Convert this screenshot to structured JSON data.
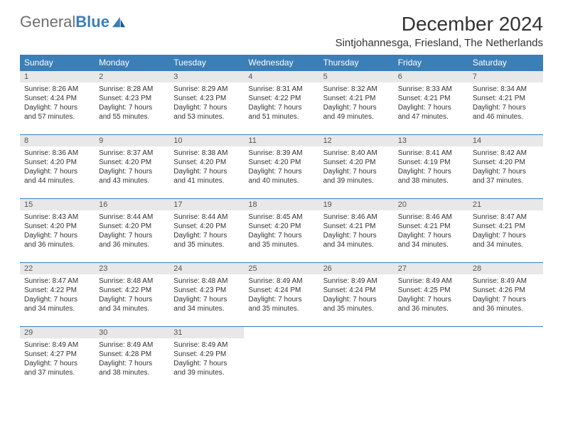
{
  "brand": {
    "part1": "General",
    "part2": "Blue",
    "sail_color": "#3b7fb8"
  },
  "title": "December 2024",
  "location": "Sintjohannesga, Friesland, The Netherlands",
  "colors": {
    "header_bg": "#3b7fb8",
    "header_fg": "#ffffff",
    "daynum_bg": "#e8e8e8",
    "rule": "#3b7fb8"
  },
  "weekdays": [
    "Sunday",
    "Monday",
    "Tuesday",
    "Wednesday",
    "Thursday",
    "Friday",
    "Saturday"
  ],
  "start_weekday": 0,
  "days": [
    {
      "n": 1,
      "sunrise": "8:26 AM",
      "sunset": "4:24 PM",
      "daylight": "7 hours and 57 minutes."
    },
    {
      "n": 2,
      "sunrise": "8:28 AM",
      "sunset": "4:23 PM",
      "daylight": "7 hours and 55 minutes."
    },
    {
      "n": 3,
      "sunrise": "8:29 AM",
      "sunset": "4:23 PM",
      "daylight": "7 hours and 53 minutes."
    },
    {
      "n": 4,
      "sunrise": "8:31 AM",
      "sunset": "4:22 PM",
      "daylight": "7 hours and 51 minutes."
    },
    {
      "n": 5,
      "sunrise": "8:32 AM",
      "sunset": "4:21 PM",
      "daylight": "7 hours and 49 minutes."
    },
    {
      "n": 6,
      "sunrise": "8:33 AM",
      "sunset": "4:21 PM",
      "daylight": "7 hours and 47 minutes."
    },
    {
      "n": 7,
      "sunrise": "8:34 AM",
      "sunset": "4:21 PM",
      "daylight": "7 hours and 46 minutes."
    },
    {
      "n": 8,
      "sunrise": "8:36 AM",
      "sunset": "4:20 PM",
      "daylight": "7 hours and 44 minutes."
    },
    {
      "n": 9,
      "sunrise": "8:37 AM",
      "sunset": "4:20 PM",
      "daylight": "7 hours and 43 minutes."
    },
    {
      "n": 10,
      "sunrise": "8:38 AM",
      "sunset": "4:20 PM",
      "daylight": "7 hours and 41 minutes."
    },
    {
      "n": 11,
      "sunrise": "8:39 AM",
      "sunset": "4:20 PM",
      "daylight": "7 hours and 40 minutes."
    },
    {
      "n": 12,
      "sunrise": "8:40 AM",
      "sunset": "4:20 PM",
      "daylight": "7 hours and 39 minutes."
    },
    {
      "n": 13,
      "sunrise": "8:41 AM",
      "sunset": "4:19 PM",
      "daylight": "7 hours and 38 minutes."
    },
    {
      "n": 14,
      "sunrise": "8:42 AM",
      "sunset": "4:20 PM",
      "daylight": "7 hours and 37 minutes."
    },
    {
      "n": 15,
      "sunrise": "8:43 AM",
      "sunset": "4:20 PM",
      "daylight": "7 hours and 36 minutes."
    },
    {
      "n": 16,
      "sunrise": "8:44 AM",
      "sunset": "4:20 PM",
      "daylight": "7 hours and 36 minutes."
    },
    {
      "n": 17,
      "sunrise": "8:44 AM",
      "sunset": "4:20 PM",
      "daylight": "7 hours and 35 minutes."
    },
    {
      "n": 18,
      "sunrise": "8:45 AM",
      "sunset": "4:20 PM",
      "daylight": "7 hours and 35 minutes."
    },
    {
      "n": 19,
      "sunrise": "8:46 AM",
      "sunset": "4:21 PM",
      "daylight": "7 hours and 34 minutes."
    },
    {
      "n": 20,
      "sunrise": "8:46 AM",
      "sunset": "4:21 PM",
      "daylight": "7 hours and 34 minutes."
    },
    {
      "n": 21,
      "sunrise": "8:47 AM",
      "sunset": "4:21 PM",
      "daylight": "7 hours and 34 minutes."
    },
    {
      "n": 22,
      "sunrise": "8:47 AM",
      "sunset": "4:22 PM",
      "daylight": "7 hours and 34 minutes."
    },
    {
      "n": 23,
      "sunrise": "8:48 AM",
      "sunset": "4:22 PM",
      "daylight": "7 hours and 34 minutes."
    },
    {
      "n": 24,
      "sunrise": "8:48 AM",
      "sunset": "4:23 PM",
      "daylight": "7 hours and 34 minutes."
    },
    {
      "n": 25,
      "sunrise": "8:49 AM",
      "sunset": "4:24 PM",
      "daylight": "7 hours and 35 minutes."
    },
    {
      "n": 26,
      "sunrise": "8:49 AM",
      "sunset": "4:24 PM",
      "daylight": "7 hours and 35 minutes."
    },
    {
      "n": 27,
      "sunrise": "8:49 AM",
      "sunset": "4:25 PM",
      "daylight": "7 hours and 36 minutes."
    },
    {
      "n": 28,
      "sunrise": "8:49 AM",
      "sunset": "4:26 PM",
      "daylight": "7 hours and 36 minutes."
    },
    {
      "n": 29,
      "sunrise": "8:49 AM",
      "sunset": "4:27 PM",
      "daylight": "7 hours and 37 minutes."
    },
    {
      "n": 30,
      "sunrise": "8:49 AM",
      "sunset": "4:28 PM",
      "daylight": "7 hours and 38 minutes."
    },
    {
      "n": 31,
      "sunrise": "8:49 AM",
      "sunset": "4:29 PM",
      "daylight": "7 hours and 39 minutes."
    }
  ],
  "labels": {
    "sunrise": "Sunrise: ",
    "sunset": "Sunset: ",
    "daylight": "Daylight: "
  }
}
